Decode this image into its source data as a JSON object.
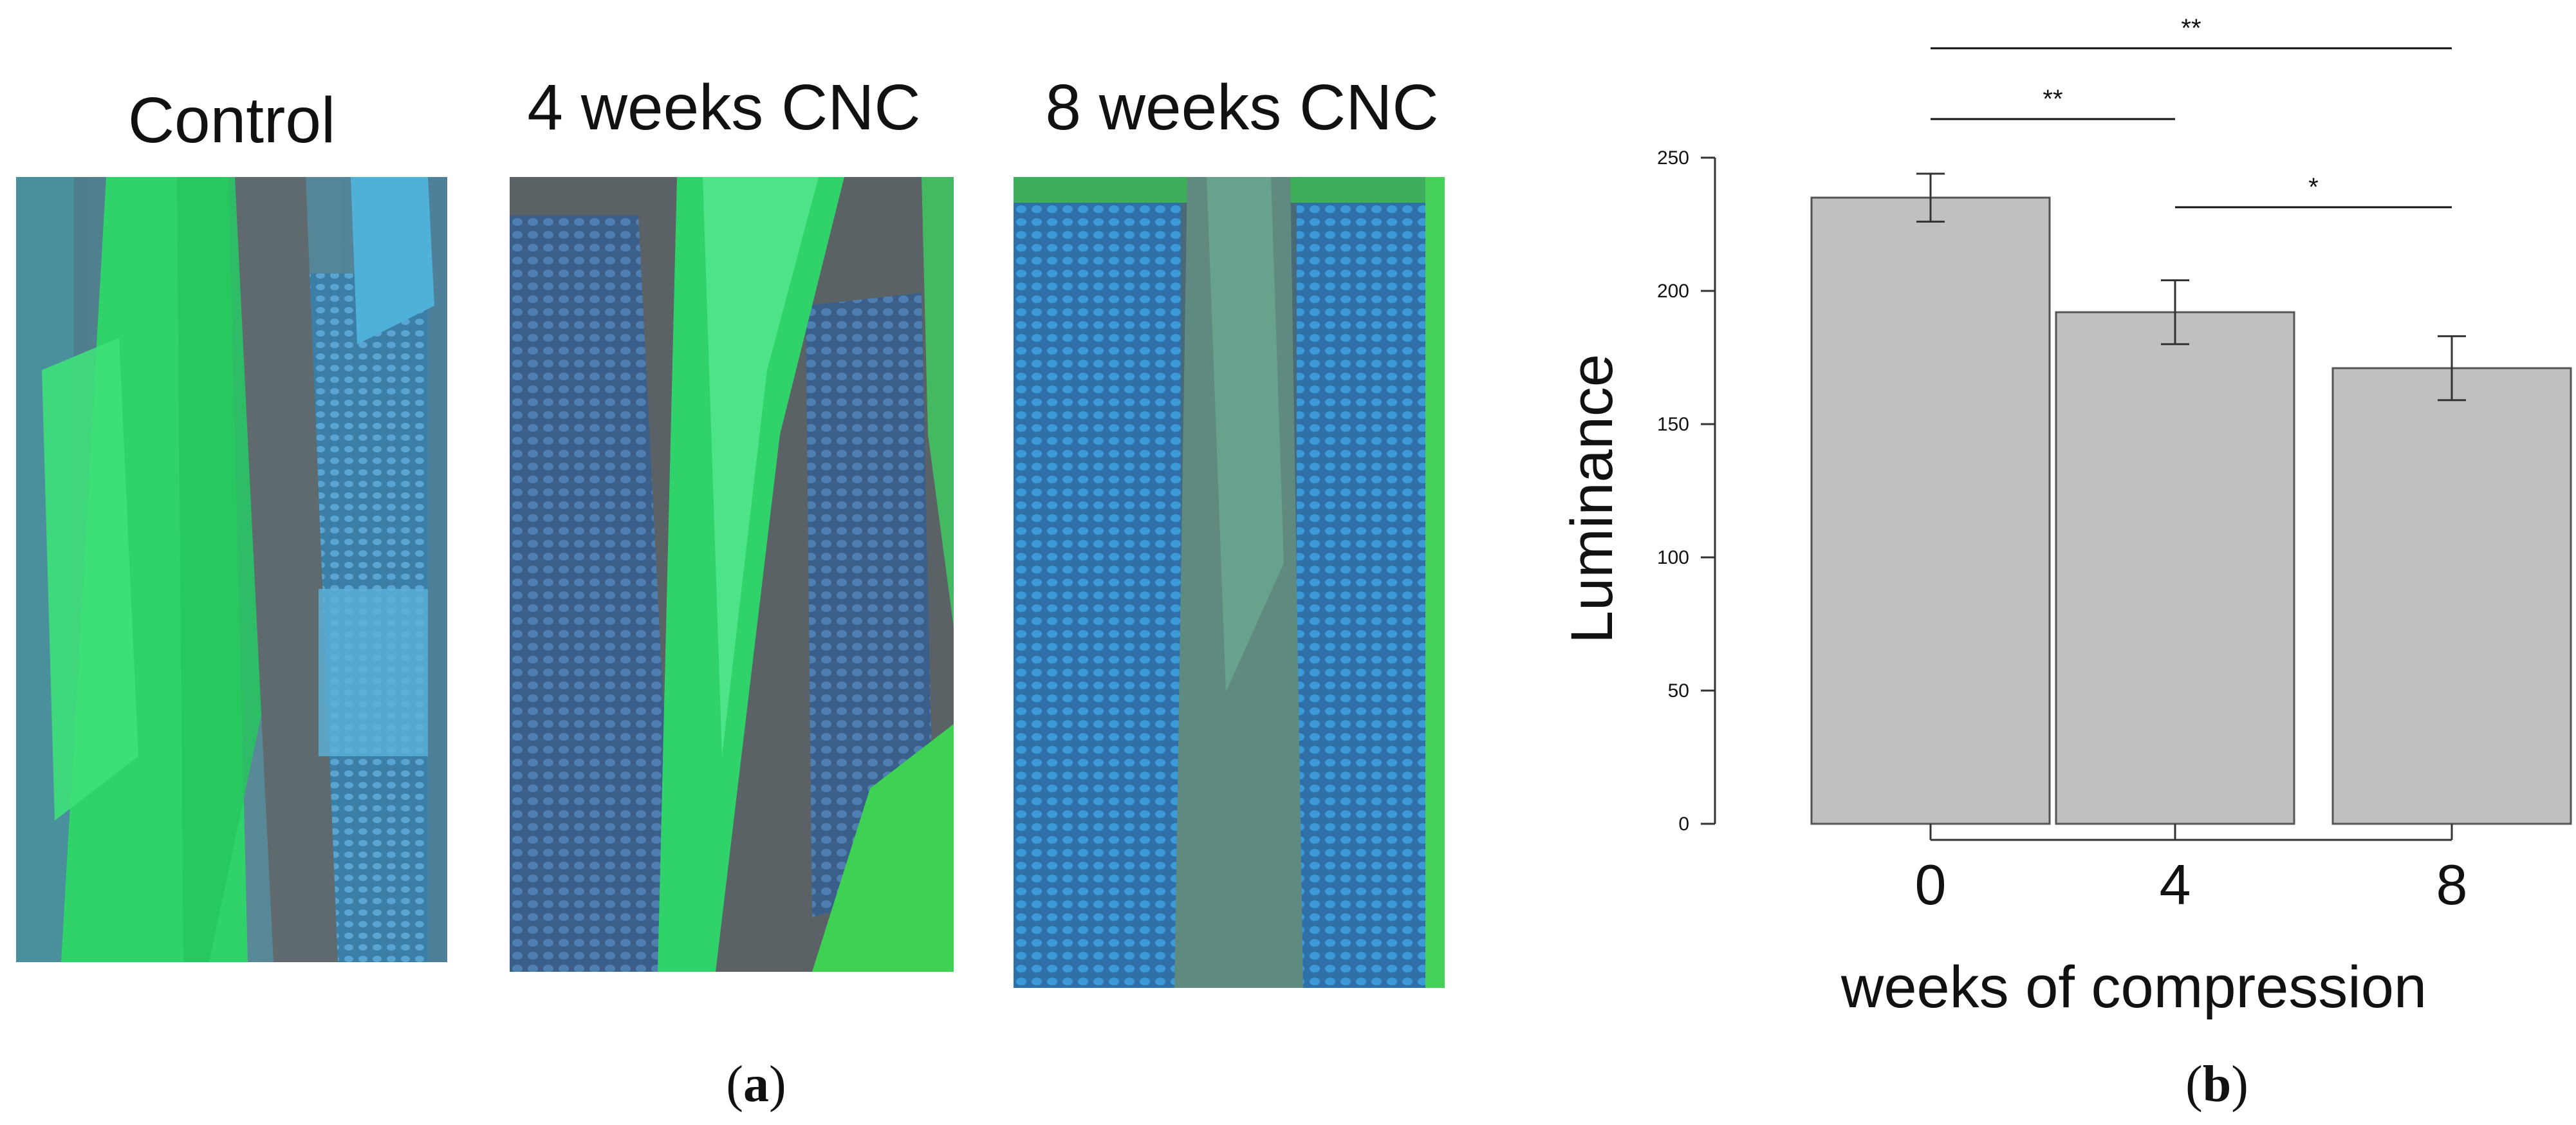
{
  "panel_a": {
    "images": [
      {
        "title": "Control"
      },
      {
        "title": "4 weeks CNC"
      },
      {
        "title": "8 weeks CNC"
      }
    ],
    "caption_prefix": "(",
    "caption_letter": "a",
    "caption_suffix": ")"
  },
  "panel_b": {
    "caption_prefix": "(",
    "caption_letter": "b",
    "caption_suffix": ")"
  },
  "colors": {
    "bar_fill": "#c0c0c0",
    "bar_stroke": "#555555",
    "tissue_green": "#2cd36a",
    "tissue_blue": "#2a8fd0",
    "background_gray": "#5e6a70"
  },
  "chart_data": {
    "type": "bar",
    "categories": [
      "0",
      "4",
      "8"
    ],
    "values": [
      235,
      192,
      171
    ],
    "error": [
      9,
      12,
      12
    ],
    "xlabel": "weeks of compression",
    "ylabel": "Luminance",
    "ylim": [
      0,
      250
    ],
    "yticks": [
      0,
      50,
      100,
      150,
      200,
      250
    ],
    "grid": false,
    "significance": [
      {
        "from": "0",
        "to": "8",
        "label": "**"
      },
      {
        "from": "0",
        "to": "4",
        "label": "**"
      },
      {
        "from": "4",
        "to": "8",
        "label": "*"
      }
    ]
  }
}
